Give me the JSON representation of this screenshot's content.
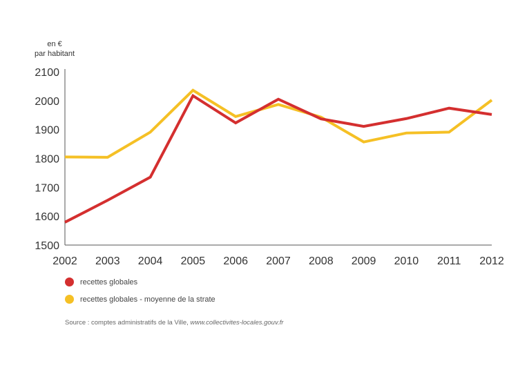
{
  "unit_label": {
    "line1": "en €",
    "line2": "par habitant"
  },
  "legend": [
    {
      "label": "recettes globales",
      "color": "#d42f2f"
    },
    {
      "label": "recettes globales - moyenne de la strate",
      "color": "#f5c025"
    }
  ],
  "source": {
    "prefix": "Source : comptes administratifs de la Ville, ",
    "link": "www.collectivites-locales.gouv.fr"
  },
  "chart_data": {
    "type": "line",
    "title": "",
    "xlabel": "",
    "ylabel": "en € par habitant",
    "x": [
      "2002",
      "2003",
      "2004",
      "2005",
      "2006",
      "2007",
      "2008",
      "2009",
      "2010",
      "2011",
      "2012"
    ],
    "ylim": [
      1500,
      2100
    ],
    "yticks": [
      1500,
      1600,
      1700,
      1800,
      1900,
      2000,
      2100
    ],
    "series": [
      {
        "name": "recettes globales - moyenne de la strate",
        "color": "#f5c025",
        "values": [
          1805,
          1804,
          1891,
          2036,
          1945,
          1987,
          1943,
          1857,
          1888,
          1891,
          2002
        ]
      },
      {
        "name": "recettes globales",
        "color": "#d42f2f",
        "values": [
          1579,
          1655,
          1735,
          2017,
          1923,
          2005,
          1937,
          1911,
          1938,
          1974,
          1952
        ]
      }
    ]
  }
}
